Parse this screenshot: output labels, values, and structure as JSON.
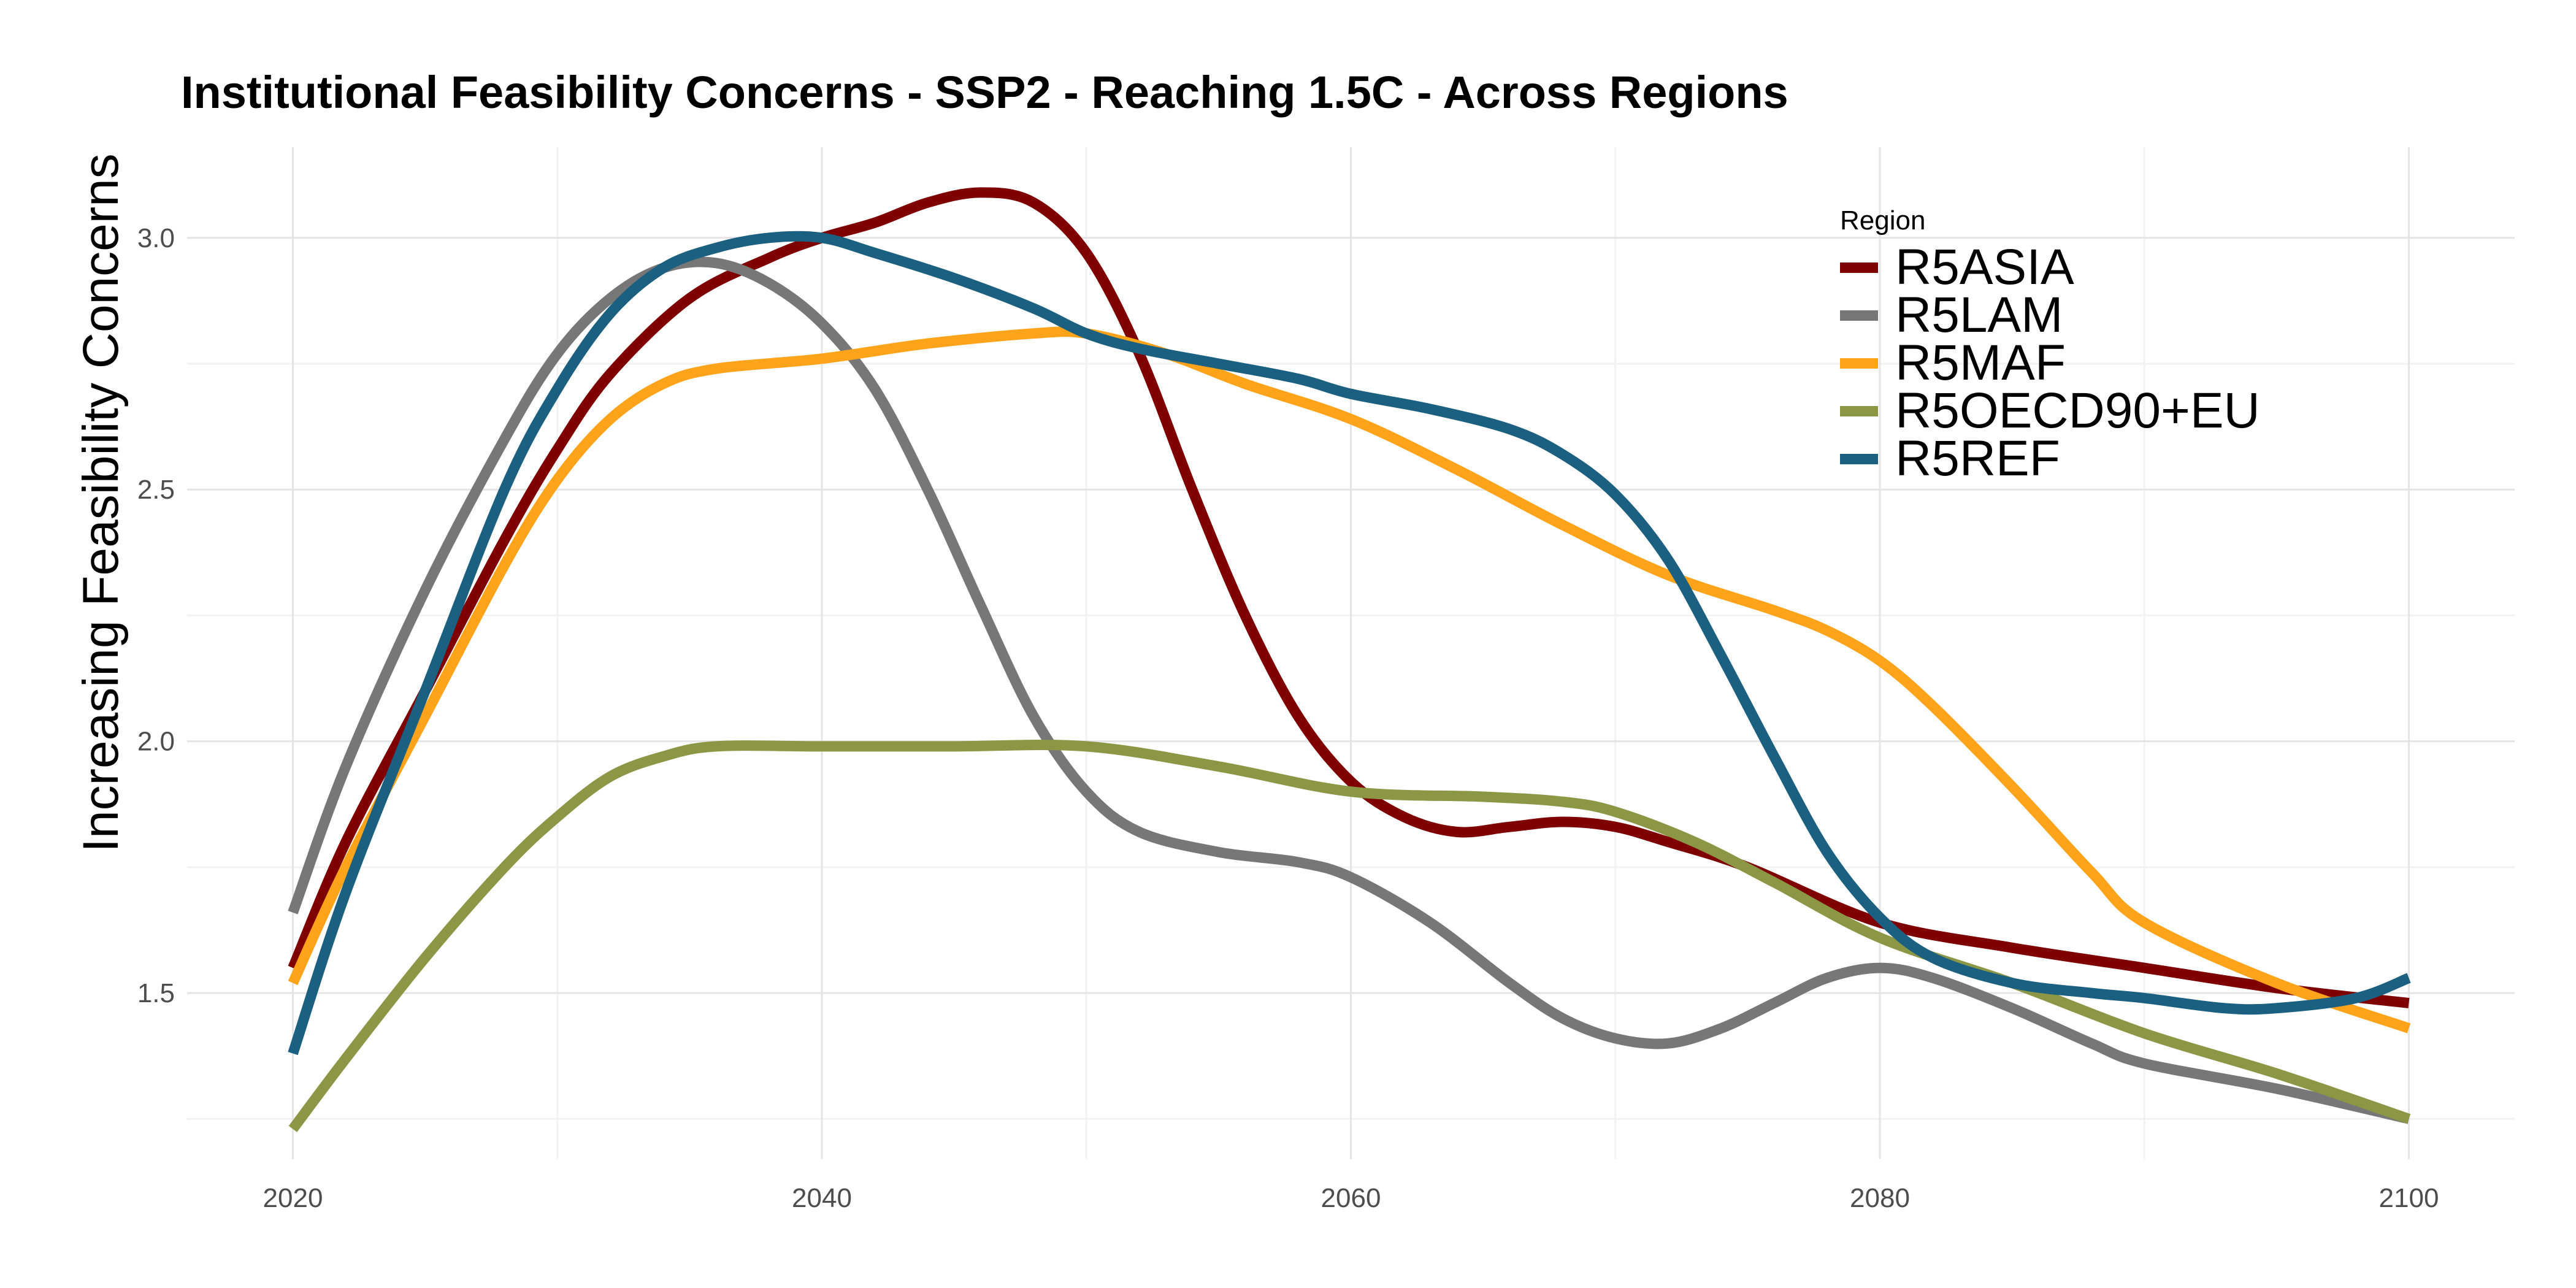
{
  "chart_data": {
    "type": "line",
    "title": "Institutional Feasibility Concerns - SSP2 - Reaching 1.5C - Across Regions",
    "xlabel": "",
    "ylabel": "Increasing Feasibility Concerns",
    "xlim": [
      2016,
      2104
    ],
    "ylim": [
      1.17,
      3.18
    ],
    "x_ticks": [
      2020,
      2040,
      2060,
      2080,
      2100
    ],
    "y_ticks": [
      1.5,
      2.0,
      2.5,
      3.0
    ],
    "y_tick_labels": [
      "1.5",
      "2.0",
      "2.5",
      "3.0"
    ],
    "x_minor": [
      2030,
      2050,
      2070,
      2090
    ],
    "y_minor": [
      1.25,
      1.75,
      2.25,
      2.75
    ],
    "grid": true,
    "legend_title": "Region",
    "legend_position": "top-right",
    "series": [
      {
        "name": "R5ASIA",
        "color": "#7f0000",
        "points": [
          [
            2020,
            1.55
          ],
          [
            2022,
            1.8
          ],
          [
            2025,
            2.1
          ],
          [
            2028,
            2.4
          ],
          [
            2030,
            2.58
          ],
          [
            2032,
            2.73
          ],
          [
            2035,
            2.88
          ],
          [
            2038,
            2.96
          ],
          [
            2040,
            3.0
          ],
          [
            2042,
            3.03
          ],
          [
            2044,
            3.07
          ],
          [
            2046,
            3.09
          ],
          [
            2048,
            3.07
          ],
          [
            2050,
            2.97
          ],
          [
            2052,
            2.77
          ],
          [
            2054,
            2.5
          ],
          [
            2056,
            2.25
          ],
          [
            2058,
            2.05
          ],
          [
            2060,
            1.92
          ],
          [
            2062,
            1.85
          ],
          [
            2064,
            1.82
          ],
          [
            2066,
            1.83
          ],
          [
            2068,
            1.84
          ],
          [
            2070,
            1.83
          ],
          [
            2072,
            1.8
          ],
          [
            2075,
            1.75
          ],
          [
            2080,
            1.64
          ],
          [
            2085,
            1.59
          ],
          [
            2090,
            1.55
          ],
          [
            2095,
            1.51
          ],
          [
            2100,
            1.48
          ]
        ]
      },
      {
        "name": "R5LAM",
        "color": "#777777",
        "points": [
          [
            2020,
            1.66
          ],
          [
            2022,
            1.95
          ],
          [
            2025,
            2.3
          ],
          [
            2028,
            2.6
          ],
          [
            2030,
            2.77
          ],
          [
            2032,
            2.88
          ],
          [
            2034,
            2.94
          ],
          [
            2036,
            2.95
          ],
          [
            2038,
            2.91
          ],
          [
            2040,
            2.83
          ],
          [
            2042,
            2.7
          ],
          [
            2044,
            2.5
          ],
          [
            2046,
            2.27
          ],
          [
            2048,
            2.05
          ],
          [
            2050,
            1.9
          ],
          [
            2052,
            1.82
          ],
          [
            2055,
            1.78
          ],
          [
            2058,
            1.76
          ],
          [
            2060,
            1.73
          ],
          [
            2063,
            1.64
          ],
          [
            2066,
            1.52
          ],
          [
            2068,
            1.45
          ],
          [
            2070,
            1.41
          ],
          [
            2072,
            1.4
          ],
          [
            2074,
            1.43
          ],
          [
            2076,
            1.48
          ],
          [
            2078,
            1.53
          ],
          [
            2080,
            1.55
          ],
          [
            2082,
            1.53
          ],
          [
            2085,
            1.47
          ],
          [
            2088,
            1.4
          ],
          [
            2090,
            1.36
          ],
          [
            2095,
            1.31
          ],
          [
            2100,
            1.25
          ]
        ]
      },
      {
        "name": "R5MAF",
        "color": "#ffa31a",
        "points": [
          [
            2020,
            1.52
          ],
          [
            2022,
            1.75
          ],
          [
            2025,
            2.05
          ],
          [
            2028,
            2.35
          ],
          [
            2030,
            2.52
          ],
          [
            2032,
            2.64
          ],
          [
            2034,
            2.71
          ],
          [
            2036,
            2.74
          ],
          [
            2040,
            2.76
          ],
          [
            2044,
            2.79
          ],
          [
            2048,
            2.81
          ],
          [
            2050,
            2.81
          ],
          [
            2053,
            2.77
          ],
          [
            2056,
            2.71
          ],
          [
            2060,
            2.64
          ],
          [
            2064,
            2.54
          ],
          [
            2068,
            2.43
          ],
          [
            2072,
            2.33
          ],
          [
            2076,
            2.26
          ],
          [
            2078,
            2.22
          ],
          [
            2080,
            2.16
          ],
          [
            2082,
            2.07
          ],
          [
            2085,
            1.91
          ],
          [
            2088,
            1.74
          ],
          [
            2090,
            1.64
          ],
          [
            2095,
            1.52
          ],
          [
            2100,
            1.43
          ]
        ]
      },
      {
        "name": "R5OECD90+EU",
        "color": "#8b9745",
        "points": [
          [
            2020,
            1.23
          ],
          [
            2022,
            1.37
          ],
          [
            2025,
            1.57
          ],
          [
            2028,
            1.75
          ],
          [
            2030,
            1.85
          ],
          [
            2032,
            1.93
          ],
          [
            2034,
            1.97
          ],
          [
            2036,
            1.99
          ],
          [
            2040,
            1.99
          ],
          [
            2045,
            1.99
          ],
          [
            2050,
            1.99
          ],
          [
            2055,
            1.95
          ],
          [
            2060,
            1.9
          ],
          [
            2065,
            1.89
          ],
          [
            2068,
            1.88
          ],
          [
            2070,
            1.86
          ],
          [
            2073,
            1.8
          ],
          [
            2076,
            1.72
          ],
          [
            2080,
            1.61
          ],
          [
            2085,
            1.52
          ],
          [
            2090,
            1.42
          ],
          [
            2095,
            1.34
          ],
          [
            2100,
            1.25
          ]
        ]
      },
      {
        "name": "R5REF",
        "color": "#1b6080",
        "points": [
          [
            2020,
            1.38
          ],
          [
            2022,
            1.7
          ],
          [
            2025,
            2.1
          ],
          [
            2028,
            2.5
          ],
          [
            2030,
            2.7
          ],
          [
            2032,
            2.85
          ],
          [
            2034,
            2.94
          ],
          [
            2036,
            2.98
          ],
          [
            2038,
            3.0
          ],
          [
            2040,
            3.0
          ],
          [
            2042,
            2.97
          ],
          [
            2045,
            2.92
          ],
          [
            2048,
            2.86
          ],
          [
            2050,
            2.81
          ],
          [
            2052,
            2.78
          ],
          [
            2055,
            2.75
          ],
          [
            2058,
            2.72
          ],
          [
            2060,
            2.69
          ],
          [
            2063,
            2.66
          ],
          [
            2066,
            2.62
          ],
          [
            2068,
            2.57
          ],
          [
            2070,
            2.49
          ],
          [
            2072,
            2.36
          ],
          [
            2074,
            2.17
          ],
          [
            2076,
            1.97
          ],
          [
            2078,
            1.78
          ],
          [
            2080,
            1.65
          ],
          [
            2082,
            1.57
          ],
          [
            2085,
            1.52
          ],
          [
            2088,
            1.5
          ],
          [
            2090,
            1.49
          ],
          [
            2093,
            1.47
          ],
          [
            2095,
            1.47
          ],
          [
            2098,
            1.49
          ],
          [
            2100,
            1.53
          ]
        ]
      }
    ]
  }
}
